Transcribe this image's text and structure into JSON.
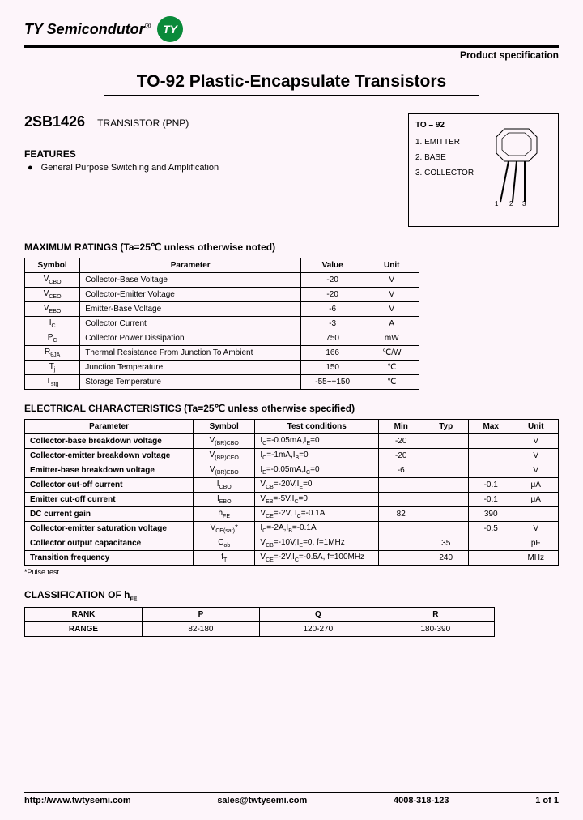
{
  "header": {
    "company": "TY Semicondutor",
    "reg": "®",
    "logo_text": "TY",
    "logo_bg": "#0a8a3a",
    "product_spec": "Product specification"
  },
  "title": "TO-92 Plastic-Encapsulate Transistors",
  "part": {
    "number": "2SB1426",
    "type": "TRANSISTOR (PNP)"
  },
  "features": {
    "heading": "FEATURES",
    "items": [
      "General Purpose Switching and Amplification"
    ]
  },
  "package": {
    "title": "TO – 92",
    "pins": [
      "1. EMITTER",
      "2. BASE",
      "3. COLLECTOR"
    ]
  },
  "ratings": {
    "heading": "MAXIMUM RATINGS (Ta=25℃ unless otherwise noted)",
    "headers": [
      "Symbol",
      "Parameter",
      "Value",
      "Unit"
    ],
    "rows": [
      [
        "V<sub>CBO</sub>",
        "Collector-Base Voltage",
        "-20",
        "V"
      ],
      [
        "V<sub>CEO</sub>",
        "Collector-Emitter Voltage",
        "-20",
        "V"
      ],
      [
        "V<sub>EBO</sub>",
        "Emitter-Base Voltage",
        "-6",
        "V"
      ],
      [
        "I<sub>C</sub>",
        "Collector Current",
        "-3",
        "A"
      ],
      [
        "P<sub>C</sub>",
        "Collector Power Dissipation",
        "750",
        "mW"
      ],
      [
        "R<sub>θJA</sub>",
        "Thermal Resistance From Junction To Ambient",
        "166",
        "℃/W"
      ],
      [
        "T<sub>j</sub>",
        "Junction Temperature",
        "150",
        "℃"
      ],
      [
        "T<sub>stg</sub>",
        "Storage Temperature",
        "-55~+150",
        "℃"
      ]
    ]
  },
  "electrical": {
    "heading": "ELECTRICAL CHARACTERISTICS (Ta=25℃ unless otherwise specified)",
    "headers": [
      "Parameter",
      "Symbol",
      "Test conditions",
      "Min",
      "Typ",
      "Max",
      "Unit"
    ],
    "rows": [
      [
        "Collector-base breakdown voltage",
        "V<sub>(BR)CBO</sub>",
        "I<sub>C</sub>=-0.05mA,I<sub>E</sub>=0",
        "-20",
        "",
        "",
        "V"
      ],
      [
        "Collector-emitter breakdown voltage",
        "V<sub>(BR)CEO</sub>",
        "I<sub>C</sub>=-1mA,I<sub>B</sub>=0",
        "-20",
        "",
        "",
        "V"
      ],
      [
        "Emitter-base breakdown voltage",
        "V<sub>(BR)EBO</sub>",
        "I<sub>E</sub>=-0.05mA,I<sub>C</sub>=0",
        "-6",
        "",
        "",
        "V"
      ],
      [
        "Collector cut-off current",
        "I<sub>CBO</sub>",
        "V<sub>CB</sub>=-20V,I<sub>E</sub>=0",
        "",
        "",
        "-0.1",
        "μA"
      ],
      [
        "Emitter cut-off current",
        "I<sub>EBO</sub>",
        "V<sub>EB</sub>=-5V,I<sub>C</sub>=0",
        "",
        "",
        "-0.1",
        "μA"
      ],
      [
        "DC current gain",
        "h<sub>FE</sub>",
        "V<sub>CE</sub>=-2V, I<sub>C</sub>=-0.1A",
        "82",
        "",
        "390",
        ""
      ],
      [
        "Collector-emitter saturation voltage",
        "V<sub>CE(sat)</sub>*",
        "I<sub>C</sub>=-2A,I<sub>B</sub>=-0.1A",
        "",
        "",
        "-0.5",
        "V"
      ],
      [
        "Collector output capacitance",
        "C<sub>ob</sub>",
        "V<sub>CB</sub>=-10V,I<sub>E</sub>=0, f=1MHz",
        "",
        "35",
        "",
        "pF"
      ],
      [
        "Transition frequency",
        "f<sub>T</sub>",
        "V<sub>CE</sub>=-2V,I<sub>C</sub>=-0.5A, f=100MHz",
        "",
        "240",
        "",
        "MHz"
      ]
    ],
    "note": "*Pulse test"
  },
  "classification": {
    "heading": "CLASSIFICATION OF h<sub>FE</sub>",
    "headers": [
      "RANK",
      "P",
      "Q",
      "R"
    ],
    "row": [
      "RANGE",
      "82-180",
      "120-270",
      "180-390"
    ]
  },
  "footer": {
    "url": "http://www.twtysemi.com",
    "email": "sales@twtysemi.com",
    "phone": "4008-318-123",
    "page": "1 of 1"
  }
}
